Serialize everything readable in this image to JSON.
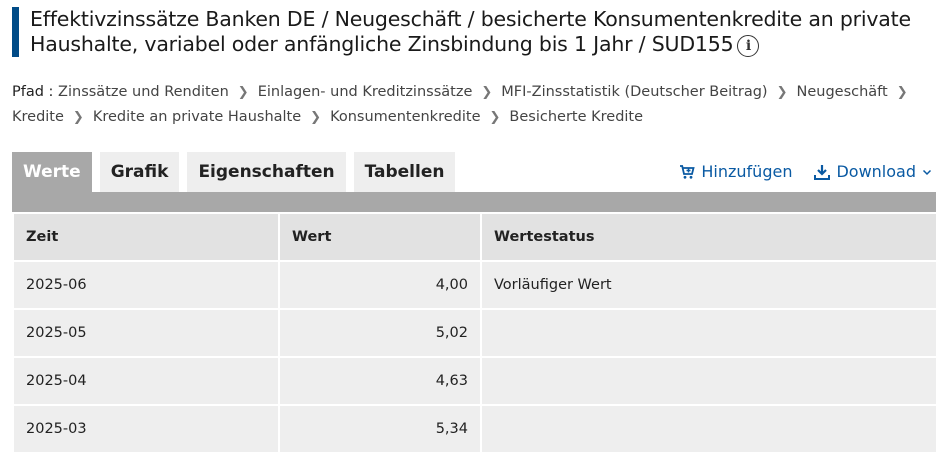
{
  "title": "Effektivzinssätze Banken DE / Neugeschäft / besicherte Konsumentenkredite an private Haushalte, variabel oder anfängliche Zinsbindung bis 1 Jahr / SUD155",
  "info_icon_glyph": "i",
  "breadcrumb": {
    "prefix": "Pfad :",
    "items": [
      "Zinssätze und Renditen",
      "Einlagen- und Kreditzinssätze",
      "MFI-Zinsstatistik (Deutscher Beitrag)",
      "Neugeschäft",
      "Kredite",
      "Kredite an private Haushalte",
      "Konsumentenkredite",
      "Besicherte Kredite"
    ]
  },
  "tabs": [
    {
      "label": "Werte",
      "active": true
    },
    {
      "label": "Grafik",
      "active": false
    },
    {
      "label": "Eigenschaften",
      "active": false
    },
    {
      "label": "Tabellen",
      "active": false
    }
  ],
  "actions": {
    "add": {
      "label": "Hinzufügen",
      "icon": "cart-add-icon"
    },
    "download": {
      "label": "Download",
      "icon": "download-icon"
    }
  },
  "table": {
    "headers": [
      "Zeit",
      "Wert",
      "Wertestatus"
    ],
    "rows": [
      {
        "zeit": "2025-06",
        "wert": "4,00",
        "status": "Vorläufiger Wert"
      },
      {
        "zeit": "2025-05",
        "wert": "5,02",
        "status": ""
      },
      {
        "zeit": "2025-04",
        "wert": "4,63",
        "status": ""
      },
      {
        "zeit": "2025-03",
        "wert": "5,34",
        "status": ""
      }
    ]
  },
  "colors": {
    "accent": "#004b87",
    "link": "#0a5aa3",
    "tab_active": "#a8a8a8",
    "tab_inactive": "#eeeeee"
  }
}
